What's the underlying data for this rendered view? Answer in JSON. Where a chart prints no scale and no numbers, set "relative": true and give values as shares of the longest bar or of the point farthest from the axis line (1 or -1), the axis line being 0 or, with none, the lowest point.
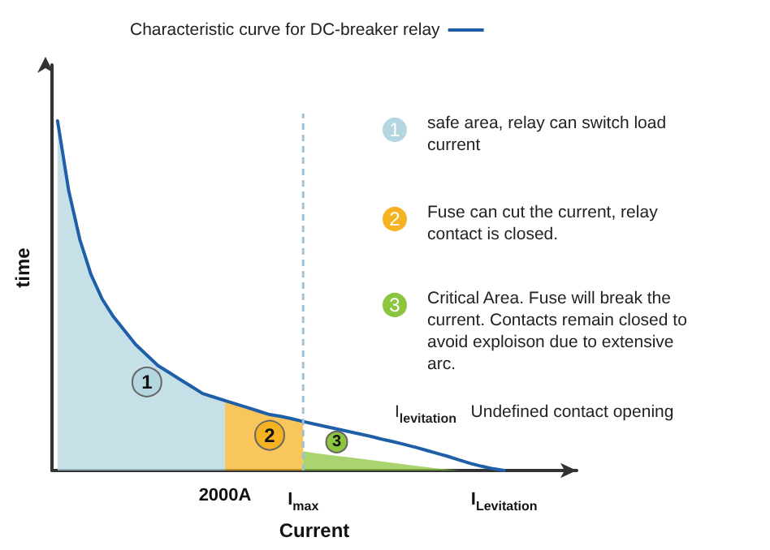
{
  "chart_data": {
    "type": "line",
    "relative": true,
    "xlabel": "Current",
    "ylabel": "time",
    "categories": [
      null,
      null,
      null,
      null,
      null,
      null,
      null,
      null,
      null,
      null,
      null,
      null,
      null,
      null,
      null,
      "2000A",
      null,
      null,
      null,
      null,
      null,
      null,
      "I$_{max}$",
      null,
      null,
      null,
      null,
      null,
      null,
      null,
      null,
      null,
      null,
      null,
      null,
      null,
      null,
      null,
      null,
      null,
      "I$_{Levitation}$",
      null,
      null,
      null,
      null,
      null,
      null
    ],
    "series": [
      {
        "name": "1",
        "type": "area",
        "color": "#b3d6e0",
        "values": [
          1.0,
          0.8,
          0.66,
          0.56,
          0.49,
          0.44,
          0.4,
          0.36,
          0.33,
          0.3,
          0.28,
          0.26,
          0.24,
          0.22,
          0.21,
          0.2,
          null,
          null,
          null,
          null,
          null,
          null,
          null,
          null,
          null,
          null,
          null,
          null,
          null,
          null,
          null,
          null,
          null,
          null,
          null,
          null,
          null,
          null,
          null,
          null,
          null,
          null,
          null,
          null,
          null,
          null,
          null
        ]
      },
      {
        "name": "2",
        "type": "area",
        "color": "#f5b324",
        "values": [
          null,
          null,
          null,
          null,
          null,
          null,
          null,
          null,
          null,
          null,
          null,
          null,
          null,
          null,
          null,
          0.2,
          0.19,
          0.18,
          0.17,
          0.16,
          0.155,
          0.148,
          0.14,
          null,
          null,
          null,
          null,
          null,
          null,
          null,
          null,
          null,
          null,
          null,
          null,
          null,
          null,
          null,
          null,
          null,
          null,
          null,
          null,
          null,
          null,
          null,
          null
        ]
      },
      {
        "name": "3",
        "type": "area",
        "color": "#8cc63f",
        "values": [
          null,
          null,
          null,
          null,
          null,
          null,
          null,
          null,
          null,
          null,
          null,
          null,
          null,
          null,
          null,
          null,
          null,
          null,
          null,
          null,
          null,
          null,
          0.055,
          0.05,
          0.046,
          0.042,
          0.038,
          0.034,
          0.03,
          0.026,
          0.022,
          0.018,
          0.014,
          0.01,
          0.006,
          0.003,
          0,
          null,
          null,
          null,
          null,
          null,
          null,
          null,
          null,
          null,
          null
        ]
      },
      {
        "name": "Characteristic curve for DC-breaker relay",
        "type": "line",
        "color": "#1f5fa8",
        "values": [
          1.0,
          0.8,
          0.66,
          0.56,
          0.49,
          0.44,
          0.4,
          0.36,
          0.33,
          0.3,
          0.28,
          0.26,
          0.24,
          0.22,
          0.21,
          0.2,
          0.19,
          0.18,
          0.17,
          0.16,
          0.155,
          0.148,
          0.14,
          0.133,
          0.126,
          0.119,
          0.112,
          0.105,
          0.098,
          0.09,
          0.083,
          0.075,
          0.067,
          0.058,
          0.049,
          0.04,
          0.03,
          0.02,
          0.012,
          0.005,
          0,
          null,
          null,
          null,
          null,
          null,
          null
        ]
      }
    ],
    "annotations": [
      "safe area, relay can switch load current",
      "Fuse can cut the current, relay contact is closed.",
      "Critical Area. Fuse will break the current. Contacts remain closed to avoid exploison due to extensive arc.",
      "I$_{levitation}$   Undefined contact opening"
    ],
    "ref_lines": [
      {
        "axis": "x",
        "value": "I$_{max}$",
        "color": "#9cc0d4",
        "line_style": "dashed"
      }
    ],
    "legend": "top",
    "marker": "none",
    "line_style": "solid",
    "grid": false
  }
}
